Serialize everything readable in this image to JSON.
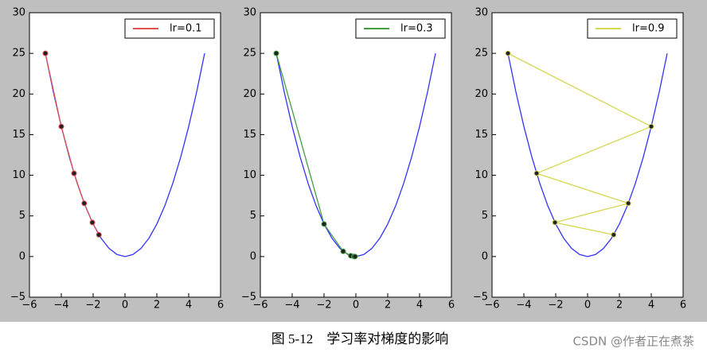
{
  "chart_data": [
    {
      "type": "line",
      "series": [
        {
          "color": "#3333ff",
          "x": [
            -5,
            -4.5,
            -4,
            -3.5,
            -3,
            -2.5,
            -2,
            -1.5,
            -1,
            -0.5,
            0,
            0.5,
            1,
            1.5,
            2,
            2.5,
            3,
            3.5,
            4,
            4.5,
            5
          ],
          "values": [
            25,
            20.25,
            16,
            12.25,
            9,
            6.25,
            4,
            2.25,
            1,
            0.25,
            0,
            0.25,
            1,
            2.25,
            4,
            6.25,
            9,
            12.25,
            16,
            20.25,
            25
          ]
        },
        {
          "name": "lr=0.1",
          "color": "#e05050",
          "marker": true,
          "x": [
            -5,
            -4,
            -3.2,
            -2.56,
            -2.048,
            -1.6384
          ],
          "values": [
            25,
            16,
            10.24,
            6.55,
            4.19,
            2.68
          ]
        }
      ],
      "xlim": [
        -6,
        6
      ],
      "ylim": [
        -5,
        30
      ],
      "xticks": [
        {
          "value": -6,
          "label": "−6"
        },
        {
          "value": -4,
          "label": "−4"
        },
        {
          "value": -2,
          "label": "−2"
        },
        0,
        2,
        4,
        6
      ],
      "yticks": [
        {
          "value": -5,
          "label": "−5"
        },
        0,
        5,
        10,
        15,
        20,
        25,
        30
      ],
      "legend": "upper right"
    },
    {
      "type": "line",
      "series": [
        {
          "color": "#3333ff",
          "x": [
            -5,
            -4.5,
            -4,
            -3.5,
            -3,
            -2.5,
            -2,
            -1.5,
            -1,
            -0.5,
            0,
            0.5,
            1,
            1.5,
            2,
            2.5,
            3,
            3.5,
            4,
            4.5,
            5
          ],
          "values": [
            25,
            20.25,
            16,
            12.25,
            9,
            6.25,
            4,
            2.25,
            1,
            0.25,
            0,
            0.25,
            1,
            2.25,
            4,
            6.25,
            9,
            12.25,
            16,
            20.25,
            25
          ]
        },
        {
          "name": "lr=0.3",
          "color": "#40a040",
          "marker": true,
          "x": [
            -5,
            -2,
            -0.8,
            -0.32,
            -0.128,
            -0.0512
          ],
          "values": [
            25,
            4,
            0.64,
            0.1,
            0.016,
            0.003
          ]
        }
      ],
      "xlim": [
        -6,
        6
      ],
      "ylim": [
        -5,
        30
      ],
      "xticks": [
        {
          "value": -6,
          "label": "−6"
        },
        {
          "value": -4,
          "label": "−4"
        },
        {
          "value": -2,
          "label": "−2"
        },
        0,
        2,
        4,
        6
      ],
      "yticks": [
        {
          "value": -5,
          "label": "−5"
        },
        0,
        5,
        10,
        15,
        20,
        25,
        30
      ],
      "legend": "upper right"
    },
    {
      "type": "line",
      "series": [
        {
          "color": "#3333ff",
          "x": [
            -5,
            -4.5,
            -4,
            -3.5,
            -3,
            -2.5,
            -2,
            -1.5,
            -1,
            -0.5,
            0,
            0.5,
            1,
            1.5,
            2,
            2.5,
            3,
            3.5,
            4,
            4.5,
            5
          ],
          "values": [
            25,
            20.25,
            16,
            12.25,
            9,
            6.25,
            4,
            2.25,
            1,
            0.25,
            0,
            0.25,
            1,
            2.25,
            4,
            6.25,
            9,
            12.25,
            16,
            20.25,
            25
          ]
        },
        {
          "name": "lr=0.9",
          "color": "#d6d650",
          "marker": true,
          "x": [
            -5,
            4,
            -3.2,
            2.56,
            -2.048,
            1.6384
          ],
          "values": [
            25,
            16,
            10.24,
            6.55,
            4.19,
            2.68
          ]
        }
      ],
      "xlim": [
        -6,
        6
      ],
      "ylim": [
        -5,
        30
      ],
      "xticks": [
        {
          "value": -6,
          "label": "−6"
        },
        {
          "value": -4,
          "label": "−4"
        },
        {
          "value": -2,
          "label": "−2"
        },
        0,
        2,
        4,
        6
      ],
      "yticks": [
        {
          "value": -5,
          "label": "−5"
        },
        0,
        5,
        10,
        15,
        20,
        25,
        30
      ],
      "legend": "upper right"
    }
  ],
  "caption": "图 5-12　学习率对梯度的影响",
  "watermark": "CSDN @作者正在煮茶"
}
